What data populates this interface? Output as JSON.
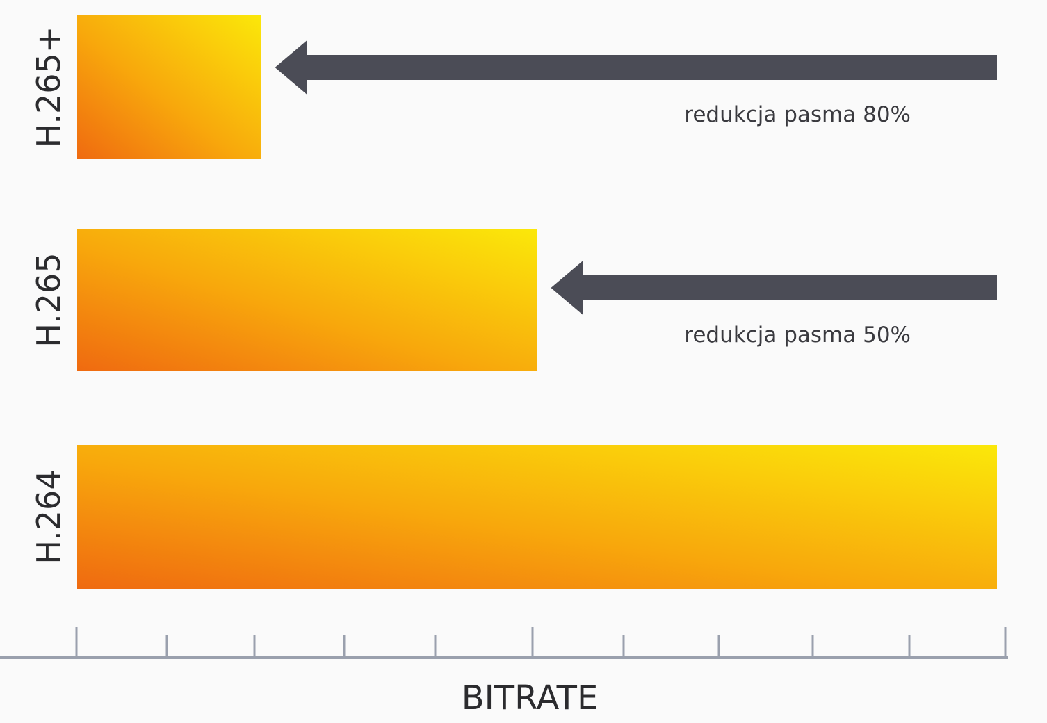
{
  "chart_data": {
    "type": "bar",
    "orientation": "horizontal",
    "categories": [
      "H.265+",
      "H.265",
      "H.264"
    ],
    "values": [
      20,
      50,
      100
    ],
    "xlabel": "BITRATE",
    "xlim": [
      0,
      100
    ],
    "x_ticks": 11,
    "grid": false,
    "legend": "none",
    "annotations": [
      {
        "category": "H.265+",
        "text": "redukcja pasma 80%"
      },
      {
        "category": "H.265",
        "text": "redukcja pasma 50%"
      }
    ]
  },
  "colors": {
    "bar_gradient_start": "#ef6a10",
    "bar_gradient_mid": "#f8a80c",
    "bar_gradient_end": "#fbe80a",
    "arrow": "#4b4c56",
    "axis": "#9aa0ad",
    "text": "#2b2b2e",
    "background": "#fafafa"
  }
}
